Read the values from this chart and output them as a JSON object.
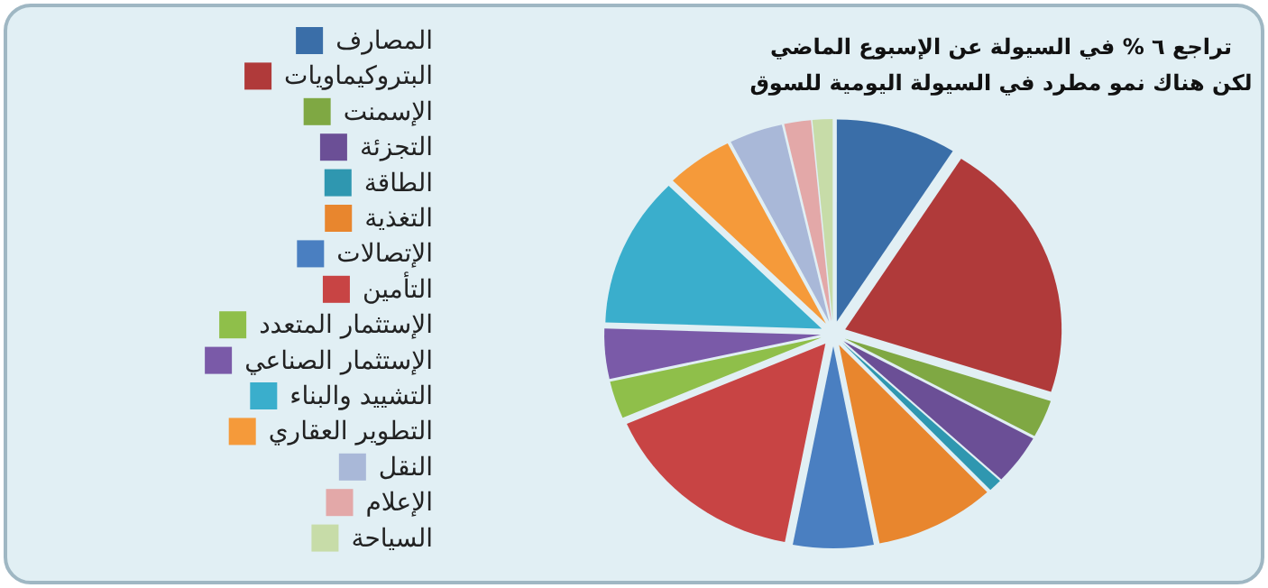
{
  "chart_data": {
    "type": "pie",
    "title": "تراجع ٦ % في السيولة عن الإسبوع الماضي\nلكن هناك نمو مطرد في السيولة اليومية للسوق",
    "legend": "left",
    "categories": [
      "المصارف",
      "البتروكيماويات",
      "الإسمنت",
      "التجزئة",
      "الطاقة",
      "التغذية",
      "الإتصالات",
      "التأمين",
      "الإستثمار المتعدد",
      "الإستثمار الصناعي",
      "التشييد والبناء",
      "التطوير العقاري",
      "النقل",
      "الإعلام",
      "السياحة"
    ],
    "values": [
      9,
      21,
      3,
      4,
      1,
      9,
      6,
      15.5,
      3,
      4,
      12,
      5,
      4,
      2,
      1.5
    ],
    "colors": [
      "#3a6ea8",
      "#b03a3a",
      "#7fa843",
      "#6b4f96",
      "#2f97b0",
      "#e8862e",
      "#4a7fc1",
      "#c84444",
      "#8fbf4a",
      "#7a5aa8",
      "#3aaecc",
      "#f59a3a",
      "#a9b8d8",
      "#e3a8a8",
      "#c7dca8"
    ]
  }
}
